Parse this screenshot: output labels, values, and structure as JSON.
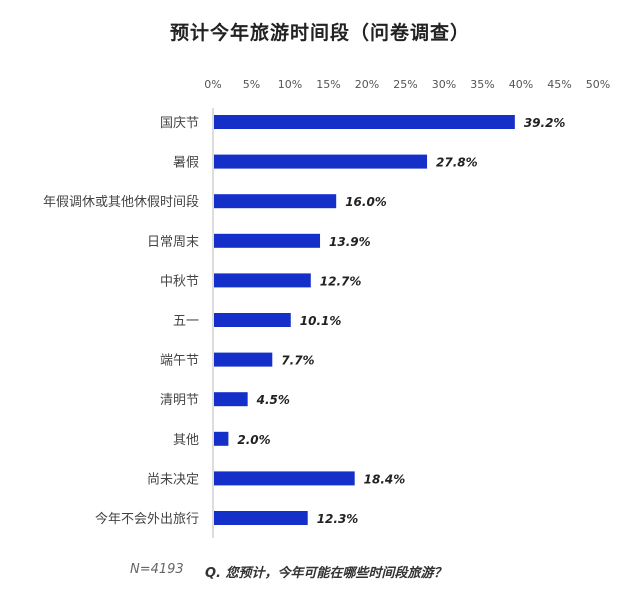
{
  "title": "预计今年旅游时间段（问卷调查）",
  "footer": {
    "sample_size": "N=4193",
    "question": "Q. 您预计，今年可能在哪些时间段旅游？"
  },
  "colors": {
    "bar": "#1530c8",
    "axis_text": "#555555",
    "category_text": "#444444",
    "value_text": "#222222"
  },
  "chart_data": {
    "type": "bar",
    "orientation": "horizontal",
    "title": "预计今年旅游时间段（问卷调查）",
    "xlabel": "",
    "ylabel": "",
    "xlim": [
      0,
      50
    ],
    "x_axis_position": "top",
    "x_ticks": [
      "0%",
      "5%",
      "10%",
      "15%",
      "20%",
      "25%",
      "30%",
      "35%",
      "40%",
      "45%",
      "50%"
    ],
    "grid": false,
    "categories": [
      "国庆节",
      "暑假",
      "年假调休或其他休假时间段",
      "日常周末",
      "中秋节",
      "五一",
      "端午节",
      "清明节",
      "其他",
      "尚未决定",
      "今年不会外出旅行"
    ],
    "values": [
      39.2,
      27.8,
      16.0,
      13.9,
      12.7,
      10.1,
      7.7,
      4.5,
      2.0,
      18.4,
      12.3
    ],
    "value_labels": [
      "39.2%",
      "27.8%",
      "16.0%",
      "13.9%",
      "12.7%",
      "10.1%",
      "7.7%",
      "4.5%",
      "2.0%",
      "18.4%",
      "12.3%"
    ]
  }
}
